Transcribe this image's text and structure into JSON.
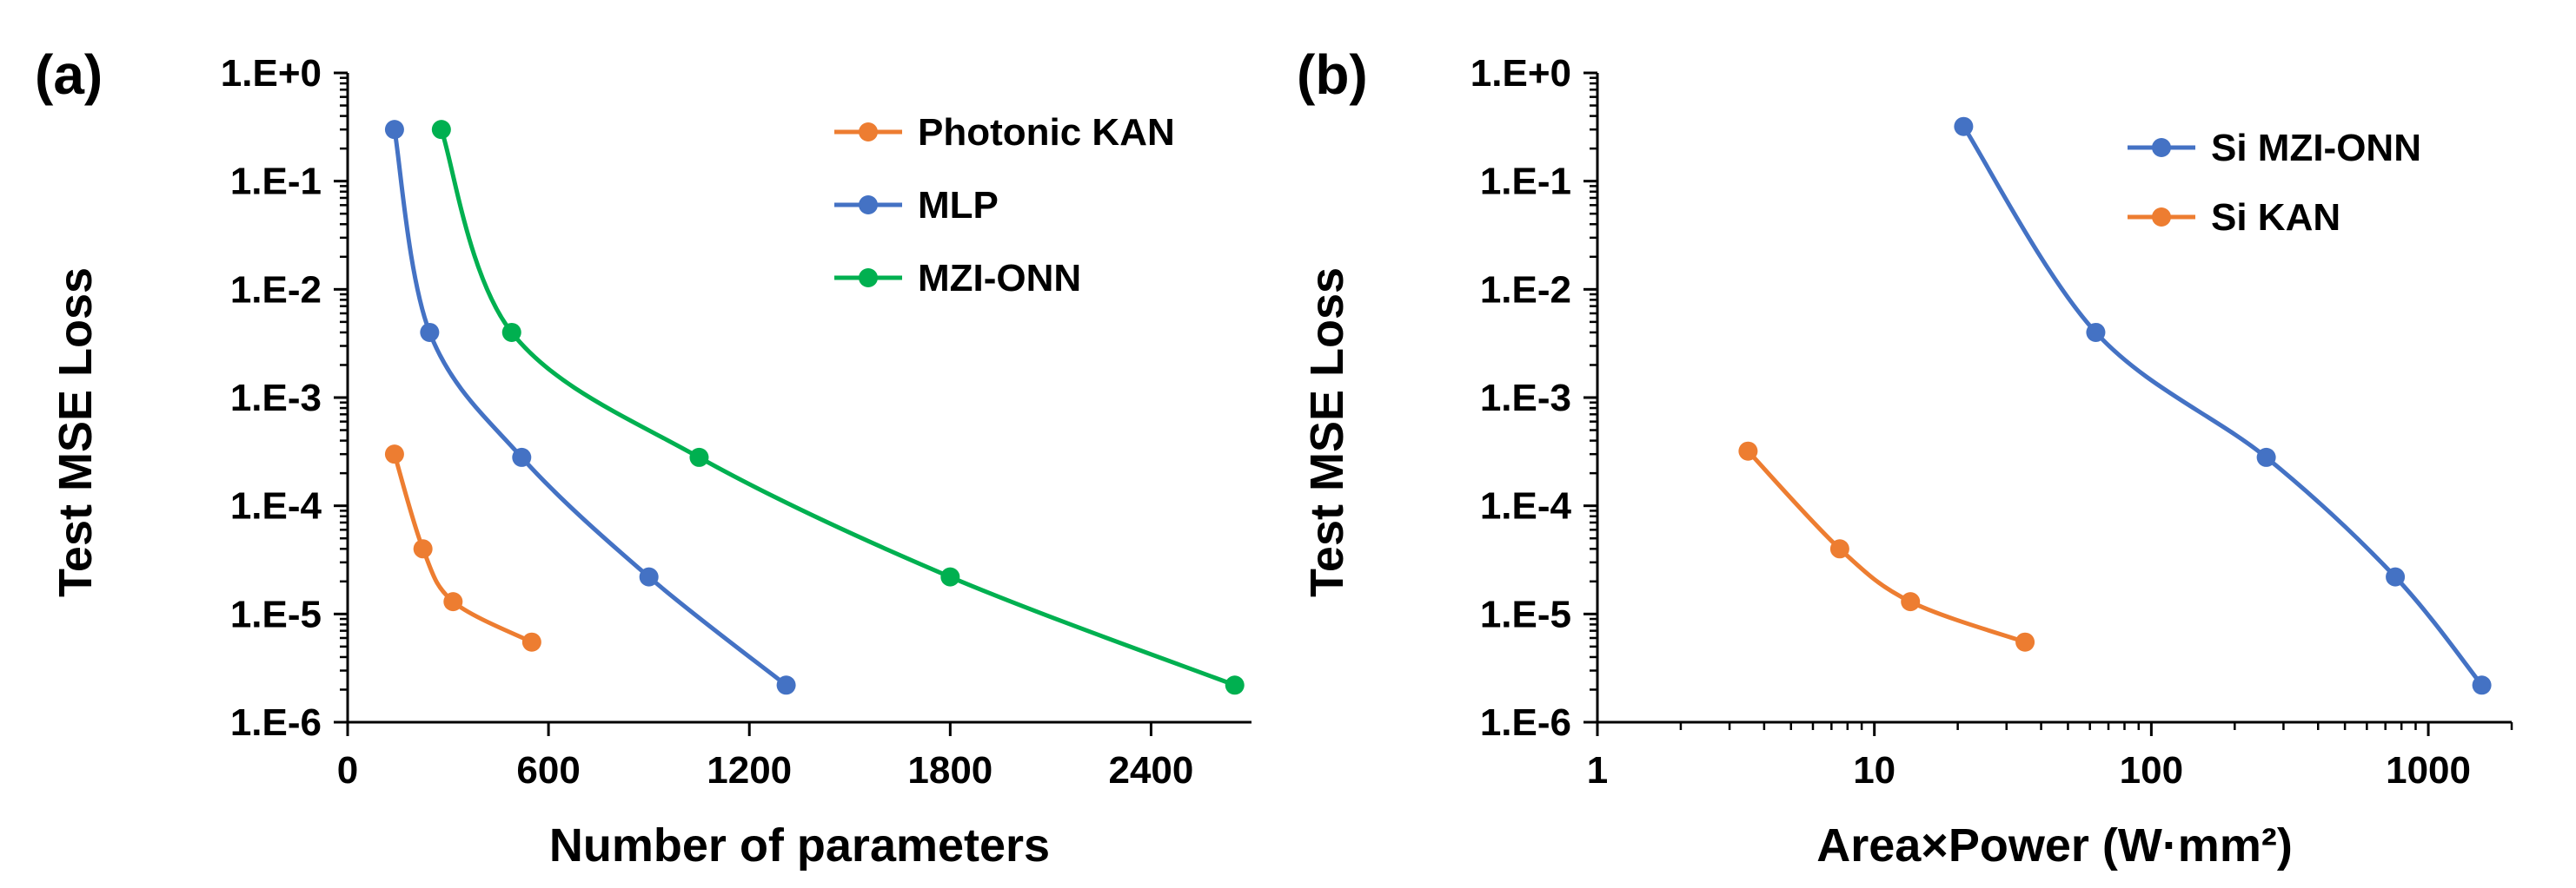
{
  "chart_data": [
    {
      "type": "line",
      "panel_label": "(a)",
      "xlabel": "Number of parameters",
      "ylabel": "Test MSE Loss",
      "xlim": [
        0,
        2700
      ],
      "xticks": [
        0,
        600,
        1200,
        1800,
        2400
      ],
      "xtick_labels": [
        "0",
        "600",
        "1200",
        "1800",
        "2400"
      ],
      "xscale": "linear",
      "yscale": "log",
      "ylim": [
        1e-06,
        1
      ],
      "ytick_labels": [
        "1.E+0",
        "1.E-1",
        "1.E-2",
        "1.E-3",
        "1.E-4",
        "1.E-5",
        "1.E-6"
      ],
      "legend_position": "top-right",
      "series": [
        {
          "name": "Photonic KAN",
          "color": "#ED7D31",
          "x": [
            140,
            225,
            315,
            550
          ],
          "y": [
            0.0003,
            4e-05,
            1.3e-05,
            5.5e-06
          ]
        },
        {
          "name": "MLP",
          "color": "#4472C4",
          "x": [
            140,
            245,
            520,
            900,
            1310
          ],
          "y": [
            0.3,
            0.004,
            0.00028,
            2.2e-05,
            2.2e-06
          ]
        },
        {
          "name": "MZI-ONN",
          "color": "#00B050",
          "x": [
            280,
            490,
            1050,
            1800,
            2650
          ],
          "y": [
            0.3,
            0.004,
            0.00028,
            2.2e-05,
            2.2e-06
          ]
        }
      ]
    },
    {
      "type": "line",
      "panel_label": "(b)",
      "xlabel": "Area×Power (W·mm²)",
      "ylabel": "Test MSE Loss",
      "xscale": "log",
      "xlim": [
        1,
        2000
      ],
      "xticks": [
        1,
        10,
        100,
        1000
      ],
      "xtick_labels": [
        "1",
        "10",
        "100",
        "1000"
      ],
      "yscale": "log",
      "ylim": [
        1e-06,
        1
      ],
      "ytick_labels": [
        "1.E+0",
        "1.E-1",
        "1.E-2",
        "1.E-3",
        "1.E-4",
        "1.E-5",
        "1.E-6"
      ],
      "legend_position": "top-right",
      "series": [
        {
          "name": "Si MZI-ONN",
          "color": "#4472C4",
          "x": [
            21,
            63,
            260,
            760,
            1560
          ],
          "y": [
            0.32,
            0.004,
            0.00028,
            2.2e-05,
            2.2e-06
          ]
        },
        {
          "name": "Si KAN",
          "color": "#ED7D31",
          "x": [
            3.5,
            7.5,
            13.5,
            35
          ],
          "y": [
            0.00032,
            4e-05,
            1.3e-05,
            5.5e-06
          ]
        }
      ]
    }
  ]
}
